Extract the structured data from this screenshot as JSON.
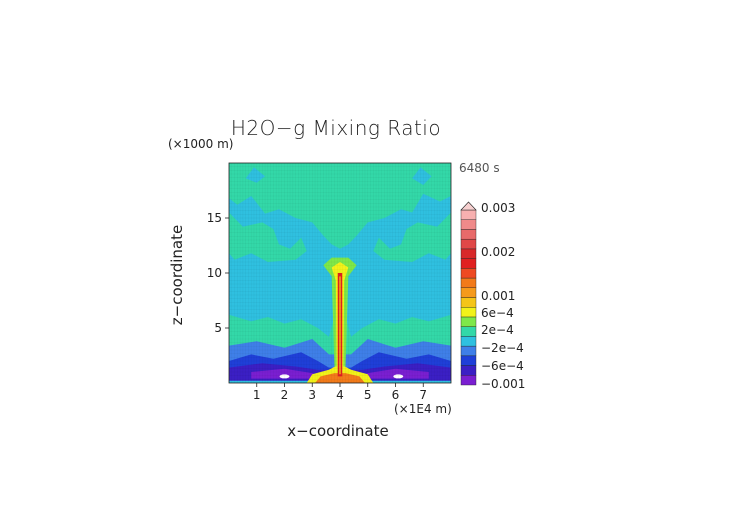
{
  "chart_data": {
    "type": "heatmap",
    "title": "H2O−g Mixing Ratio",
    "time_label": "6480 s",
    "xlabel": "x−coordinate",
    "ylabel": "z−coordinate",
    "x_unit": "(×1E4 m)",
    "y_unit": "(×1000 m)",
    "xlim": [
      0,
      8
    ],
    "ylim": [
      0,
      20
    ],
    "x_ticks": [
      1,
      2,
      3,
      4,
      5,
      6,
      7
    ],
    "y_ticks": [
      5,
      10,
      15
    ],
    "colorbar": {
      "labels": [
        "0.003",
        "0.002",
        "0.001",
        "6e−4",
        "2e−4",
        "−2e−4",
        "−6e−4",
        "−0.001"
      ],
      "label_values": [
        0.003,
        0.002,
        0.001,
        0.0006,
        0.0002,
        -0.0002,
        -0.0006,
        -0.001
      ],
      "colors": [
        "#7a1fd1",
        "#3b1fc4",
        "#1f3fd8",
        "#3f7fe8",
        "#2fc0e0",
        "#33d8a8",
        "#7ee84a",
        "#f2f21a",
        "#f5c518",
        "#f59a1c",
        "#f27a1a",
        "#ee4a22",
        "#e02020",
        "#d8282a",
        "#e04848",
        "#e86a6a",
        "#f08a8a",
        "#f7b0b0"
      ]
    },
    "field": {
      "background_value": -0.0001,
      "upper_band_value": 0.0001,
      "plume_value": 0.002,
      "plume_x_center": 4.0,
      "plume_top_z": 10.5,
      "surface_negative_value": -0.0009
    }
  }
}
